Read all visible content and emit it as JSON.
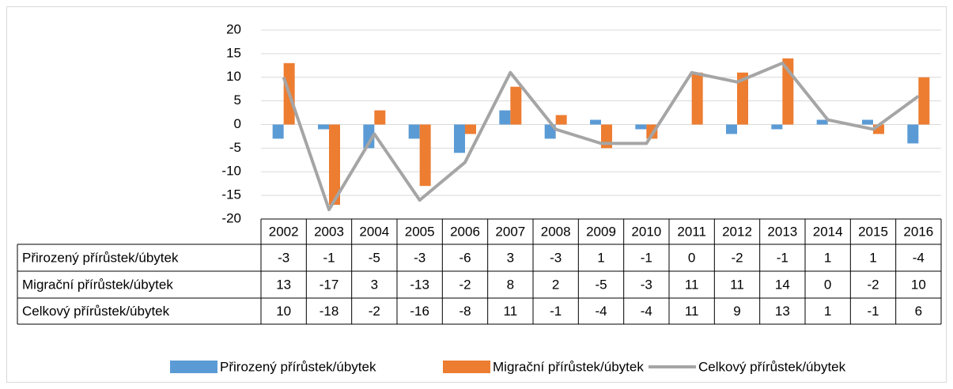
{
  "chart_data": {
    "type": "combo",
    "categories": [
      "2002",
      "2003",
      "2004",
      "2005",
      "2006",
      "2007",
      "2008",
      "2009",
      "2010",
      "2011",
      "2012",
      "2013",
      "2014",
      "2015",
      "2016"
    ],
    "series": [
      {
        "name": "Přirozený přírůstek/úbytek",
        "type": "bar",
        "color": "#5b9bd5",
        "values": [
          -3,
          -1,
          -5,
          -3,
          -6,
          3,
          -3,
          1,
          -1,
          0,
          -2,
          -1,
          1,
          1,
          -4
        ]
      },
      {
        "name": "Migrační přírůstek/úbytek",
        "type": "bar",
        "color": "#ed7d31",
        "values": [
          13,
          -17,
          3,
          -13,
          -2,
          8,
          2,
          -5,
          -3,
          11,
          11,
          14,
          0,
          -2,
          10
        ]
      },
      {
        "name": "Celkový přírůstek/úbytek",
        "type": "line",
        "color": "#a5a5a5",
        "values": [
          10,
          -18,
          -2,
          -16,
          -8,
          11,
          -1,
          -4,
          -4,
          11,
          9,
          13,
          1,
          -1,
          6
        ]
      }
    ],
    "ylim": [
      -20,
      20
    ],
    "yticks": [
      -20,
      -15,
      -10,
      -5,
      0,
      5,
      10,
      15,
      20
    ],
    "grid": true,
    "legend": "bottom"
  }
}
